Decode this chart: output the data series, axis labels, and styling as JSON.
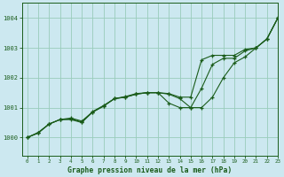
{
  "title": "Graphe pression niveau de la mer (hPa)",
  "bg_color": "#cce8f0",
  "plot_bg_color": "#cce8f0",
  "grid_color": "#99ccbb",
  "line_color": "#1a5c1a",
  "xlim": [
    -0.5,
    23
  ],
  "ylim": [
    999.4,
    1004.5
  ],
  "yticks": [
    1000,
    1001,
    1002,
    1003,
    1004
  ],
  "xticks": [
    0,
    1,
    2,
    3,
    4,
    5,
    6,
    7,
    8,
    9,
    10,
    11,
    12,
    13,
    14,
    15,
    16,
    17,
    18,
    19,
    20,
    21,
    22,
    23
  ],
  "line1_x": [
    0,
    1,
    2,
    3,
    4,
    5,
    6,
    7,
    8,
    9,
    10,
    11,
    12,
    13,
    14,
    15,
    16,
    17,
    18,
    19,
    20,
    21,
    22,
    23
  ],
  "line1_y": [
    1000.0,
    1000.15,
    1000.45,
    1000.6,
    1000.65,
    1000.55,
    1000.85,
    1001.05,
    1001.3,
    1001.35,
    1001.45,
    1001.5,
    1001.5,
    1001.45,
    1001.3,
    1001.0,
    1001.65,
    1002.45,
    1002.65,
    1002.65,
    1002.9,
    1003.0,
    1003.3,
    1004.0
  ],
  "line2_x": [
    0,
    1,
    2,
    3,
    4,
    5,
    6,
    7,
    8,
    9,
    10,
    11,
    12,
    13,
    14,
    15,
    16,
    17,
    18,
    19,
    20,
    21,
    22,
    23
  ],
  "line2_y": [
    1000.0,
    1000.15,
    1000.45,
    1000.6,
    1000.6,
    1000.5,
    1000.85,
    1001.05,
    1001.3,
    1001.35,
    1001.45,
    1001.5,
    1001.5,
    1001.15,
    1001.0,
    1001.0,
    1001.0,
    1001.35,
    1002.0,
    1002.5,
    1002.7,
    1003.0,
    1003.3,
    1004.0
  ],
  "line3_x": [
    0,
    1,
    2,
    3,
    4,
    5,
    6,
    7,
    8,
    9,
    10,
    11,
    12,
    13,
    14,
    15,
    16,
    17,
    18,
    19,
    20,
    21,
    22,
    23
  ],
  "line3_y": [
    1000.0,
    1000.17,
    1000.45,
    1000.6,
    1000.62,
    1000.52,
    1000.87,
    1001.07,
    1001.3,
    1001.37,
    1001.47,
    1001.5,
    1001.5,
    1001.47,
    1001.35,
    1001.35,
    1002.6,
    1002.75,
    1002.75,
    1002.75,
    1002.95,
    1003.0,
    1003.3,
    1004.0
  ]
}
